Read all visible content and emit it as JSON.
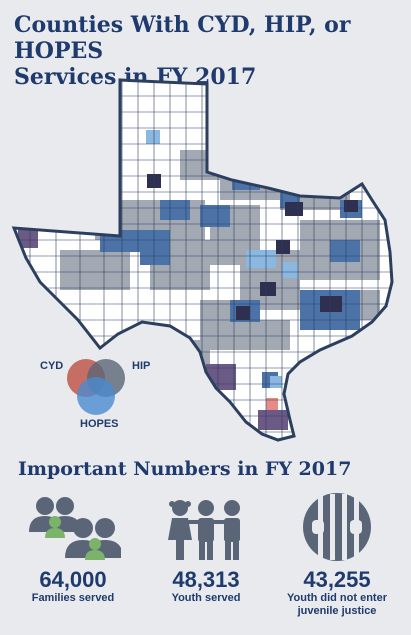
{
  "header": {
    "title_line1": "Counties With CYD, HIP, or HOPES",
    "title_line2": "Services in FY 2017"
  },
  "legend": {
    "cyd": "CYD",
    "hip": "HIP",
    "hopes": "HOPES",
    "colors": {
      "cyd": "#c0584a",
      "hip": "#5a6577",
      "hopes": "#4a8bd0"
    }
  },
  "map_colors": {
    "outline": "#2d3f5f",
    "none": "#ffffff",
    "one": "#a3a9b3",
    "blue": "#4c73a8",
    "light_blue": "#8bb8e0",
    "dark": "#2f2f4f",
    "purple": "#6b5a86",
    "red": "#e88a86"
  },
  "numbers": {
    "title": "Important Numbers in FY 2017",
    "stats": [
      {
        "value": "64,000",
        "label_lines": [
          "Families served"
        ],
        "icon": "families-icon"
      },
      {
        "value": "48,313",
        "label_lines": [
          "Youth served"
        ],
        "icon": "youth-icon"
      },
      {
        "value": "43,255",
        "label_lines": [
          "Youth did not enter",
          "juvenile justice"
        ],
        "icon": "jail-bars-icon"
      }
    ]
  }
}
